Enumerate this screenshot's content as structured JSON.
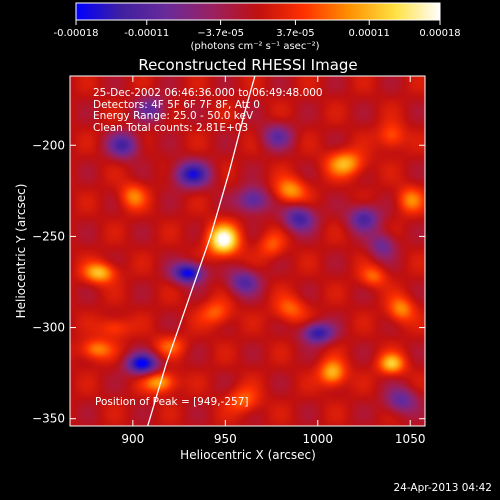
{
  "chart_data": {
    "type": "heatmap",
    "title": "Reconstructed RHESSI Image",
    "xlabel": "Heliocentric X (arcsec)",
    "ylabel": "Heliocentric Y (arcsec)",
    "xlim": [
      866,
      1058
    ],
    "ylim": [
      -354,
      -162
    ],
    "x_ticks": [
      900,
      950,
      1000,
      1050
    ],
    "y_ticks": [
      -200,
      -250,
      -300,
      -350
    ],
    "colorbar": {
      "range": [
        -0.00018,
        0.00018
      ],
      "tick_values": [
        -0.00018,
        -0.00011,
        -3.7e-05,
        3.7e-05,
        0.00011,
        0.00018
      ],
      "tick_labels": [
        "-0.00018",
        "-0.00011",
        "−3.7e-05",
        "3.7e-05",
        "0.00011",
        "0.00018"
      ],
      "unit": "(photons cm⁻² s⁻¹ asec⁻²)",
      "colors": [
        "#0000ff",
        "#4020a0",
        "#6a2a9a",
        "#9a2060",
        "#c01010",
        "#ff3000",
        "#ff9000",
        "#ffe040",
        "#ffffff"
      ]
    },
    "annotations": [
      "25-Dec-2002 06:46:36.000 to 06:49:48.000",
      "Detectors: 4F 5F 6F 7F 8F, Att 0",
      "Energy Range: 25.0 - 50.0 keV",
      "Clean    Total counts: 2.81E+03"
    ],
    "peak_label": "Position of Peak = [949,-257]",
    "peak": [
      949,
      -257
    ],
    "limb_curve": [
      [
        908,
        -354
      ],
      [
        918,
        -320
      ],
      [
        930,
        -285
      ],
      [
        942,
        -250
      ],
      [
        952,
        -215
      ],
      [
        961,
        -180
      ],
      [
        966,
        -162
      ]
    ],
    "sources": [
      {
        "x": 949,
        "y": -252,
        "value": 0.00018,
        "sx": 6,
        "sy": 6
      },
      {
        "x": 1008,
        "y": -325,
        "value": 0.00012,
        "sx": 5,
        "sy": 5
      },
      {
        "x": 1040,
        "y": -320,
        "value": 0.00012,
        "sx": 5,
        "sy": 4
      },
      {
        "x": 1015,
        "y": -210,
        "value": 0.00011,
        "sx": 7,
        "sy": 5
      },
      {
        "x": 985,
        "y": -225,
        "value": 0.0001,
        "sx": 6,
        "sy": 5
      },
      {
        "x": 882,
        "y": -270,
        "value": 0.00012,
        "sx": 6,
        "sy": 4
      },
      {
        "x": 915,
        "y": -330,
        "value": 0.00011,
        "sx": 6,
        "sy": 4
      },
      {
        "x": 880,
        "y": -312,
        "value": 9e-05,
        "sx": 6,
        "sy": 4
      },
      {
        "x": 900,
        "y": -228,
        "value": 8e-05,
        "sx": 5,
        "sy": 5
      },
      {
        "x": 1050,
        "y": -230,
        "value": 8e-05,
        "sx": 5,
        "sy": 5
      },
      {
        "x": 985,
        "y": -290,
        "value": 7e-05,
        "sx": 6,
        "sy": 5
      },
      {
        "x": 945,
        "y": -292,
        "value": 7e-05,
        "sx": 6,
        "sy": 5
      },
      {
        "x": 960,
        "y": -340,
        "value": 7e-05,
        "sx": 6,
        "sy": 5
      },
      {
        "x": 1045,
        "y": -290,
        "value": 9e-05,
        "sx": 5,
        "sy": 5
      },
      {
        "x": 1030,
        "y": -272,
        "value": 7e-05,
        "sx": 5,
        "sy": 4
      },
      {
        "x": 1040,
        "y": -195,
        "value": 7e-05,
        "sx": 5,
        "sy": 5
      },
      {
        "x": 890,
        "y": -300,
        "value": 6e-05,
        "sx": 6,
        "sy": 4
      },
      {
        "x": 920,
        "y": -310,
        "value": 6e-05,
        "sx": 6,
        "sy": 4
      },
      {
        "x": 975,
        "y": -255,
        "value": 6e-05,
        "sx": 5,
        "sy": 5
      },
      {
        "x": 930,
        "y": -270,
        "value": -0.00018,
        "sx": 6,
        "sy": 4
      },
      {
        "x": 905,
        "y": -320,
        "value": -0.00018,
        "sx": 6,
        "sy": 4
      },
      {
        "x": 932,
        "y": -216,
        "value": -0.00015,
        "sx": 7,
        "sy": 5
      },
      {
        "x": 1000,
        "y": -303,
        "value": -0.00015,
        "sx": 6,
        "sy": 4
      },
      {
        "x": 990,
        "y": -240,
        "value": -0.00013,
        "sx": 6,
        "sy": 5
      },
      {
        "x": 965,
        "y": -230,
        "value": -0.00012,
        "sx": 6,
        "sy": 5
      },
      {
        "x": 895,
        "y": -200,
        "value": -0.00012,
        "sx": 6,
        "sy": 5
      },
      {
        "x": 1025,
        "y": -240,
        "value": -0.00012,
        "sx": 6,
        "sy": 5
      },
      {
        "x": 960,
        "y": -275,
        "value": -0.00011,
        "sx": 6,
        "sy": 5
      },
      {
        "x": 1045,
        "y": -340,
        "value": -0.0001,
        "sx": 6,
        "sy": 5
      },
      {
        "x": 1035,
        "y": -255,
        "value": -9e-05,
        "sx": 5,
        "sy": 5
      },
      {
        "x": 910,
        "y": -180,
        "value": -9e-05,
        "sx": 6,
        "sy": 5
      },
      {
        "x": 978,
        "y": -195,
        "value": -9e-05,
        "sx": 6,
        "sy": 5
      }
    ],
    "grid": false
  },
  "footer": {
    "timestamp": "24-Apr-2013 04:42"
  }
}
